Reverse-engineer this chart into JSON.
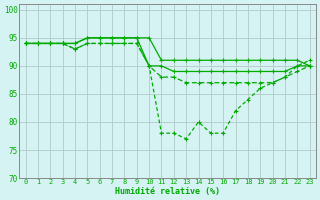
{
  "xlabel": "Humidité relative (%)",
  "background_color": "#d6f3f3",
  "grid_color": "#b0c8c8",
  "line_color": "#00aa00",
  "xlim": [
    -0.5,
    23.5
  ],
  "ylim": [
    70,
    101
  ],
  "yticks": [
    70,
    75,
    80,
    85,
    90,
    95,
    100
  ],
  "xticks": [
    0,
    1,
    2,
    3,
    4,
    5,
    6,
    7,
    8,
    9,
    10,
    11,
    12,
    13,
    14,
    15,
    16,
    17,
    18,
    19,
    20,
    21,
    22,
    23
  ],
  "series": [
    [
      94,
      94,
      94,
      94,
      94,
      95,
      95,
      95,
      95,
      95,
      95,
      91,
      91,
      91,
      91,
      91,
      91,
      91,
      91,
      91,
      91,
      91,
      91,
      90
    ],
    [
      94,
      94,
      94,
      94,
      94,
      95,
      95,
      95,
      95,
      95,
      90,
      90,
      89,
      89,
      89,
      89,
      89,
      89,
      89,
      89,
      89,
      89,
      90,
      90
    ],
    [
      94,
      94,
      94,
      94,
      93,
      94,
      94,
      94,
      94,
      94,
      90,
      88,
      88,
      87,
      87,
      87,
      87,
      87,
      87,
      87,
      87,
      88,
      89,
      90
    ],
    [
      94,
      94,
      94,
      94,
      93,
      94,
      94,
      94,
      94,
      94,
      90,
      78,
      78,
      77,
      80,
      78,
      78,
      82,
      84,
      86,
      87,
      88,
      90,
      91
    ]
  ]
}
